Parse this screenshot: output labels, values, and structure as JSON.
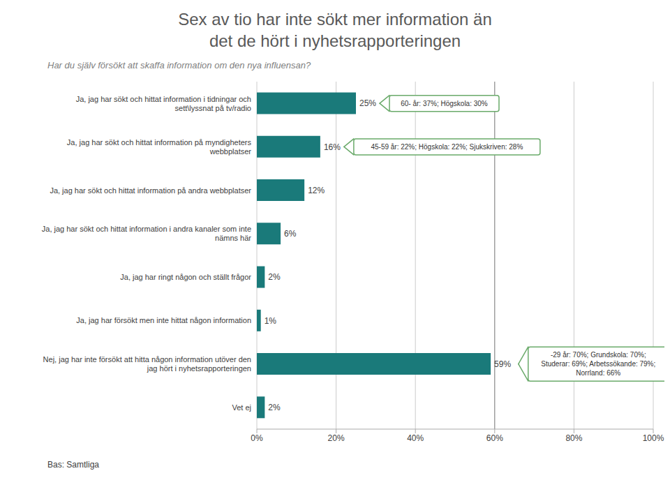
{
  "chart_data": {
    "type": "bar",
    "orientation": "horizontal",
    "title": "Sex av tio har inte sökt mer information än\ndet de hört i nyhetsrapporteringen",
    "subtitle": "Har du själv försökt att skaffa information om den nya influensan?",
    "note": "Bas: Samtliga",
    "categories": [
      "Ja, jag har sökt och hittat information i tidningar och\nsett\\lyssnat på tv/radio",
      "Ja, jag har sökt och hittat information på myndigheters\nwebbplatser",
      "Ja, jag har sökt och hittat information på andra webbplatser",
      "Ja, jag har sökt och hittat information i andra kanaler som inte\nnämns här",
      "Ja, jag har ringt någon och ställt frågor",
      "Ja, jag har försökt men inte hittat någon information",
      "Nej, jag har inte försökt att hitta någon information utöver den\njag hört i nyhetsrapporteringen",
      "Vet ej"
    ],
    "values": [
      25,
      16,
      12,
      6,
      2,
      1,
      59,
      2
    ],
    "value_labels": [
      "25%",
      "16%",
      "12%",
      "6%",
      "2%",
      "1%",
      "59%",
      "2%"
    ],
    "data_labels": true,
    "color": "#1a7a7a",
    "xlim": [
      0,
      100
    ],
    "xticks": [
      {
        "value": 0,
        "label": "0%"
      },
      {
        "value": 20,
        "label": "20%"
      },
      {
        "value": 40,
        "label": "40%"
      },
      {
        "value": 60,
        "label": "60%"
      },
      {
        "value": 80,
        "label": "80%"
      },
      {
        "value": 100,
        "label": "100%"
      }
    ],
    "grid": true,
    "reference_lines": [
      {
        "x": 60,
        "color": "#888888"
      }
    ],
    "annotations": [
      {
        "category": "Ja, jag har sökt och hittat information i tidningar och\nsett\\lyssnat på tv/radio",
        "x": 25,
        "text": "60- år: 37%; Högskola: 30%",
        "color": "#6aaa6a"
      },
      {
        "category": "Ja, jag har sökt och hittat information på myndigheters\nwebbplatser",
        "x": 16,
        "text": "45-59 år: 22%; Högskola: 22%; Sjukskriven: 28%",
        "color": "#6aaa6a"
      },
      {
        "category": "Nej, jag har inte försökt att hitta någon information utöver den\njag hört i nyhetsrapporteringen",
        "x": 60,
        "text": "-29 år: 70%; Grundskola: 70%;\nStuderar: 69%; Arbetssökande: 79%;\nNorrland: 66%",
        "color": "#6aaa6a"
      }
    ]
  }
}
